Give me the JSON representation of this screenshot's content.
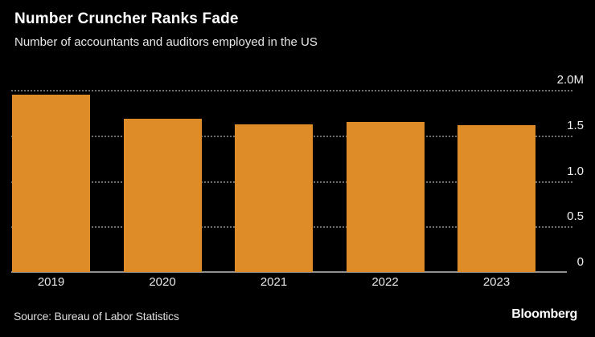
{
  "chart": {
    "title": "Number Cruncher Ranks Fade",
    "subtitle": "Number of accountants and auditors employed in the US"
  },
  "chart_data": {
    "type": "bar",
    "title": "Number Cruncher Ranks Fade",
    "subtitle": "Number of accountants and auditors employed in the US",
    "categories": [
      "2019",
      "2020",
      "2021",
      "2022",
      "2023"
    ],
    "values": [
      1.95,
      1.68,
      1.62,
      1.65,
      1.61
    ],
    "unit": "millions of people",
    "xlabel": "",
    "ylabel": "",
    "ylim": [
      0,
      2.0
    ],
    "yticks": [
      {
        "value": 2.0,
        "label": "2.0M"
      },
      {
        "value": 1.5,
        "label": "1.5"
      },
      {
        "value": 1.0,
        "label": "1.0"
      },
      {
        "value": 0.5,
        "label": "0.5"
      },
      {
        "value": 0.0,
        "label": "0"
      }
    ],
    "grid": "horizontal-dotted",
    "legend": "none",
    "bar_color": "#DD8C28",
    "background_color": "#000000",
    "axis_line_color": "#8f8f8f",
    "gridline_color": "#6e6e6e"
  },
  "footer": {
    "source": "Source: Bureau of Labor Statistics",
    "logo": "Bloomberg"
  }
}
